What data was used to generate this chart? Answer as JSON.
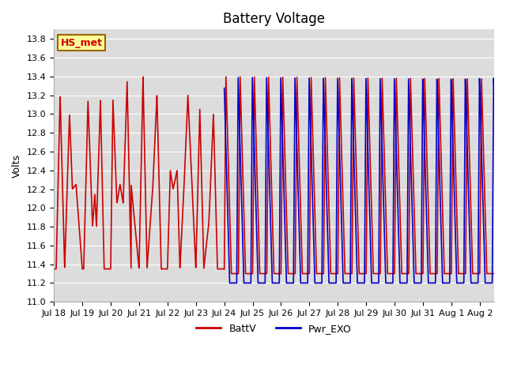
{
  "title": "Battery Voltage",
  "ylabel": "Volts",
  "xlabel": "",
  "ylim": [
    11.0,
    13.9
  ],
  "yticks": [
    11.0,
    11.2,
    11.4,
    11.6,
    11.8,
    12.0,
    12.2,
    12.4,
    12.6,
    12.8,
    13.0,
    13.2,
    13.4,
    13.6,
    13.8
  ],
  "xtick_labels": [
    "Jul 18",
    "Jul 19",
    "Jul 20",
    "Jul 21",
    "Jul 22",
    "Jul 23",
    "Jul 24",
    "Jul 25",
    "Jul 26",
    "Jul 27",
    "Jul 28",
    "Jul 29",
    "Jul 30",
    "Jul 31",
    "Aug 1",
    "Aug 2"
  ],
  "color_battv": "#cc0000",
  "color_pwr": "#0000cc",
  "legend_battv": "BattV",
  "legend_pwr": "Pwr_EXO",
  "annotation_text": "HS_met",
  "annotation_color": "#cc0000",
  "annotation_bg": "#ffff99",
  "annotation_border": "#996600",
  "bg_color": "#dcdcdc",
  "line_width": 1.2,
  "title_fontsize": 12,
  "label_fontsize": 9,
  "tick_fontsize": 8
}
